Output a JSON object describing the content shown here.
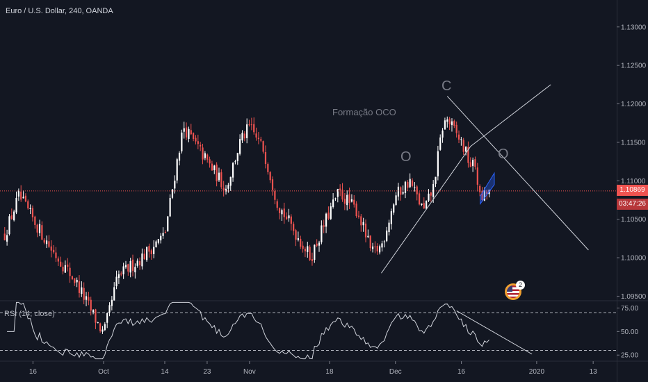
{
  "header": {
    "symbol_title": "Euro / U.S. Dollar, 240, OANDA"
  },
  "rsi": {
    "title": "RSI (14, close)",
    "ticks": [
      "75.00",
      "50.00",
      "25.00"
    ],
    "levels": [
      70,
      30
    ]
  },
  "price_axis": {
    "ticks": [
      "1.13000",
      "1.12500",
      "1.12000",
      "1.11500",
      "1.11000",
      "1.10500",
      "1.10000",
      "1.09500"
    ],
    "current_price": "1.10869",
    "countdown": "03:47:26"
  },
  "time_axis": {
    "ticks": [
      "16",
      "Oct",
      "14",
      "23",
      "Nov",
      "18",
      "Dec",
      "16",
      "2020",
      "13"
    ]
  },
  "annotations": {
    "formation_label": "Formação OCO",
    "left_shoulder": "O",
    "head": "C",
    "right_shoulder": "O"
  },
  "events": {
    "count": "2",
    "flag": "us-flag-icon"
  },
  "colors": {
    "background": "#131722",
    "bull": "#ffffff",
    "bear": "#ef5350",
    "price_line": "#ef5350",
    "lines": "#d1d4dc"
  },
  "chart_data": {
    "type": "candlestick",
    "title": "Euro / U.S. Dollar, 240, OANDA",
    "y_range": [
      1.0945,
      1.1335
    ],
    "x_labels": [
      "16",
      "Oct",
      "14",
      "23",
      "Nov",
      "18",
      "Dec",
      "16",
      "2020",
      "13"
    ],
    "approx_close_path": [
      {
        "date": "2019-09-10",
        "close": 1.103
      },
      {
        "date": "2019-09-13",
        "close": 1.108
      },
      {
        "date": "2019-09-17",
        "close": 1.104
      },
      {
        "date": "2019-09-20",
        "close": 1.101
      },
      {
        "date": "2019-09-25",
        "close": 1.097
      },
      {
        "date": "2019-10-01",
        "close": 1.09
      },
      {
        "date": "2019-10-04",
        "close": 1.0975
      },
      {
        "date": "2019-10-09",
        "close": 1.1
      },
      {
        "date": "2019-10-14",
        "close": 1.103
      },
      {
        "date": "2019-10-17",
        "close": 1.114
      },
      {
        "date": "2019-10-18",
        "close": 1.117
      },
      {
        "date": "2019-10-23",
        "close": 1.1125
      },
      {
        "date": "2019-10-27",
        "close": 1.109
      },
      {
        "date": "2019-10-30",
        "close": 1.115
      },
      {
        "date": "2019-11-01",
        "close": 1.117
      },
      {
        "date": "2019-11-04",
        "close": 1.114
      },
      {
        "date": "2019-11-07",
        "close": 1.107
      },
      {
        "date": "2019-11-11",
        "close": 1.103
      },
      {
        "date": "2019-11-14",
        "close": 1.1
      },
      {
        "date": "2019-11-18",
        "close": 1.106
      },
      {
        "date": "2019-11-20",
        "close": 1.1085
      },
      {
        "date": "2019-11-24",
        "close": 1.106
      },
      {
        "date": "2019-11-27",
        "close": 1.1005
      },
      {
        "date": "2019-11-29",
        "close": 1.1015
      },
      {
        "date": "2019-12-02",
        "close": 1.108
      },
      {
        "date": "2019-12-05",
        "close": 1.11
      },
      {
        "date": "2019-12-08",
        "close": 1.106
      },
      {
        "date": "2019-12-10",
        "close": 1.109
      },
      {
        "date": "2019-12-12",
        "close": 1.117
      },
      {
        "date": "2019-12-13",
        "close": 1.118
      },
      {
        "date": "2019-12-16",
        "close": 1.115
      },
      {
        "date": "2019-12-18",
        "close": 1.112
      },
      {
        "date": "2019-12-19",
        "close": 1.112
      },
      {
        "date": "2019-12-20",
        "close": 1.1075
      },
      {
        "date": "2019-12-22",
        "close": 1.1087
      }
    ],
    "rsi_range": [
      20,
      82
    ],
    "rsi_levels": [
      70,
      30
    ]
  }
}
